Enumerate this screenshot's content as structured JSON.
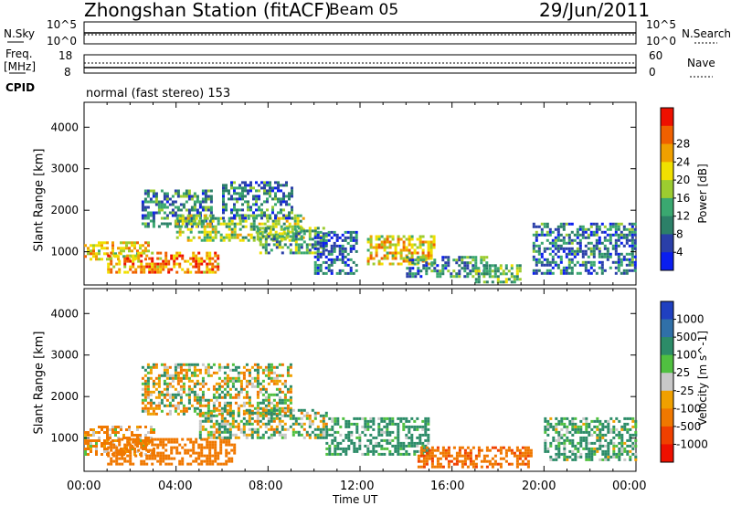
{
  "header": {
    "station": "Zhongshan Station (fitACF)",
    "beam": "Beam 05",
    "date": "29/Jun/2011"
  },
  "top_panels": {
    "nsky": {
      "left_label": "N.Sky",
      "right_label": "N.Search",
      "left_ticks": [
        "10^5",
        "10^0"
      ],
      "right_ticks": [
        "10^5",
        "10^0"
      ]
    },
    "freq": {
      "left_label_1": "Freq.",
      "left_label_2": "[MHz]",
      "right_label": "Nave",
      "left_ticks": [
        "18",
        "8"
      ],
      "right_ticks": [
        "60",
        "0"
      ]
    },
    "cpid_label": "CPID",
    "cpid_text": "normal (fast stereo) 153"
  },
  "time_axis": {
    "label": "Time UT",
    "ticks": [
      "00:00",
      "04:00",
      "08:00",
      "12:00",
      "16:00",
      "20:00",
      "00:00"
    ]
  },
  "chart_data": [
    {
      "type": "heatmap",
      "title": "Power",
      "ylabel": "Slant Range [km]",
      "xlabel": "Time UT",
      "ylim": [
        200,
        4600
      ],
      "xlim": [
        0,
        24
      ],
      "yticks": [
        1000,
        2000,
        3000,
        4000
      ],
      "colorbar": {
        "label": "Power [dB]",
        "ticks": [
          "4",
          "8",
          "12",
          "16",
          "20",
          "24",
          "28"
        ],
        "colors": [
          "#0a1ef0",
          "#2a3fa8",
          "#2c8068",
          "#3aa870",
          "#9ccc30",
          "#f0e000",
          "#f0a000",
          "#f06000",
          "#ee1000"
        ]
      },
      "patches": [
        {
          "t0": 0.0,
          "t1": 2.8,
          "r0": 800,
          "r1": 1250,
          "value": 20
        },
        {
          "t0": 1.0,
          "t1": 5.8,
          "r0": 500,
          "r1": 1000,
          "value": 24
        },
        {
          "t0": 2.5,
          "t1": 5.5,
          "r0": 1600,
          "r1": 2500,
          "value": 10
        },
        {
          "t0": 4.0,
          "t1": 9.5,
          "r0": 1300,
          "r1": 1900,
          "value": 16
        },
        {
          "t0": 6.0,
          "t1": 9.0,
          "r0": 1800,
          "r1": 2700,
          "value": 8
        },
        {
          "t0": 7.5,
          "t1": 10.5,
          "r0": 1000,
          "r1": 1600,
          "value": 12
        },
        {
          "t0": 10.0,
          "t1": 11.8,
          "r0": 500,
          "r1": 1500,
          "value": 7
        },
        {
          "t0": 12.3,
          "t1": 15.2,
          "r0": 700,
          "r1": 1400,
          "value": 20
        },
        {
          "t0": 14.0,
          "t1": 17.5,
          "r0": 400,
          "r1": 900,
          "value": 10
        },
        {
          "t0": 17.0,
          "t1": 19.0,
          "r0": 300,
          "r1": 700,
          "value": 14
        },
        {
          "t0": 19.5,
          "t1": 24.0,
          "r0": 500,
          "r1": 1700,
          "value": 8
        }
      ]
    },
    {
      "type": "heatmap",
      "title": "Velocity",
      "ylabel": "Slant Range [km]",
      "xlabel": "Time UT",
      "ylim": [
        200,
        4600
      ],
      "xlim": [
        0,
        24
      ],
      "yticks": [
        1000,
        2000,
        3000,
        4000
      ],
      "colorbar": {
        "label": "Velocity [m s^-1]",
        "ticks": [
          "1000",
          "500",
          "100",
          "25",
          "-25",
          "-100",
          "-500",
          "-1000"
        ],
        "colors": [
          "#2040c0",
          "#3070a8",
          "#2c8c68",
          "#50c040",
          "#c8c8c8",
          "#f0a000",
          "#f07800",
          "#f04000",
          "#ee1000"
        ]
      },
      "patches": [
        {
          "t0": 0.0,
          "t1": 3.0,
          "r0": 600,
          "r1": 1300,
          "value": -150
        },
        {
          "t0": 1.0,
          "t1": 6.5,
          "r0": 400,
          "r1": 1000,
          "value": -300
        },
        {
          "t0": 2.5,
          "t1": 9.0,
          "r0": 1600,
          "r1": 2800,
          "value": 0
        },
        {
          "t0": 5.0,
          "t1": 10.5,
          "r0": 1000,
          "r1": 1700,
          "value": 60
        },
        {
          "t0": 10.5,
          "t1": 15.0,
          "r0": 600,
          "r1": 1500,
          "value": 200
        },
        {
          "t0": 14.5,
          "t1": 19.5,
          "r0": 300,
          "r1": 800,
          "value": -400
        },
        {
          "t0": 20.0,
          "t1": 24.0,
          "r0": 500,
          "r1": 1500,
          "value": 150
        }
      ]
    }
  ]
}
